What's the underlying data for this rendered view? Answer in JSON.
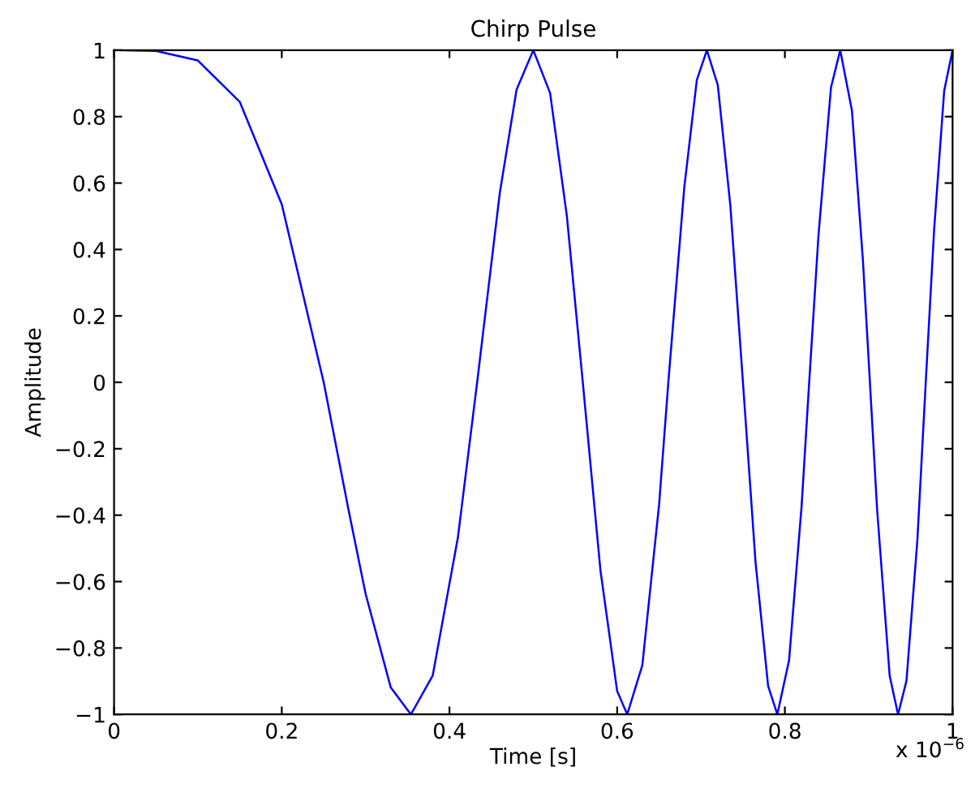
{
  "chart_data": {
    "type": "line",
    "title": "Chirp Pulse",
    "xlabel": "Time [s]",
    "ylabel": "Amplitude",
    "annotations": [
      "x 10$^{−6}$"
    ],
    "x": [
      0,
      0.05,
      0.1,
      0.15,
      0.2,
      0.25,
      0.28,
      0.3,
      0.33,
      0.354,
      0.38,
      0.41,
      0.433,
      0.46,
      0.48,
      0.5,
      0.52,
      0.54,
      0.559,
      0.58,
      0.6,
      0.612,
      0.63,
      0.65,
      0.661,
      0.68,
      0.695,
      0.707,
      0.72,
      0.735,
      0.75,
      0.765,
      0.78,
      0.791,
      0.805,
      0.82,
      0.829,
      0.84,
      0.855,
      0.866,
      0.88,
      0.893,
      0.9,
      0.91,
      0.925,
      0.935,
      0.945,
      0.958,
      0.968,
      0.978,
      0.99,
      1
    ],
    "series": [
      {
        "color": "#0000ff",
        "values": [
          1,
          0.998,
          0.969,
          0.844,
          0.536,
          0,
          -0.389,
          -0.637,
          -0.919,
          -1,
          -0.883,
          -0.468,
          0,
          0.57,
          0.881,
          1,
          0.871,
          0.501,
          0,
          -0.565,
          -0.93,
          -1,
          -0.852,
          -0.368,
          0,
          0.586,
          0.91,
          1,
          0.895,
          0.532,
          0,
          -0.541,
          -0.914,
          -1,
          -0.837,
          -0.371,
          0,
          0.44,
          0.888,
          1,
          0.818,
          0.37,
          0.063,
          -0.383,
          -0.884,
          -1,
          -0.899,
          -0.476,
          0,
          0.46,
          0.878,
          1
        ]
      }
    ],
    "xlim": [
      0,
      1
    ],
    "ylim": [
      -1,
      1
    ],
    "xticks": [
      0,
      0.2,
      0.4,
      0.6,
      0.8,
      1
    ],
    "yticks": [
      -1,
      -0.8,
      -0.6,
      -0.4,
      -0.2,
      0,
      0.2,
      0.4,
      0.6,
      0.8,
      1
    ],
    "grid": false,
    "marker": "none",
    "line_style": "solid"
  }
}
